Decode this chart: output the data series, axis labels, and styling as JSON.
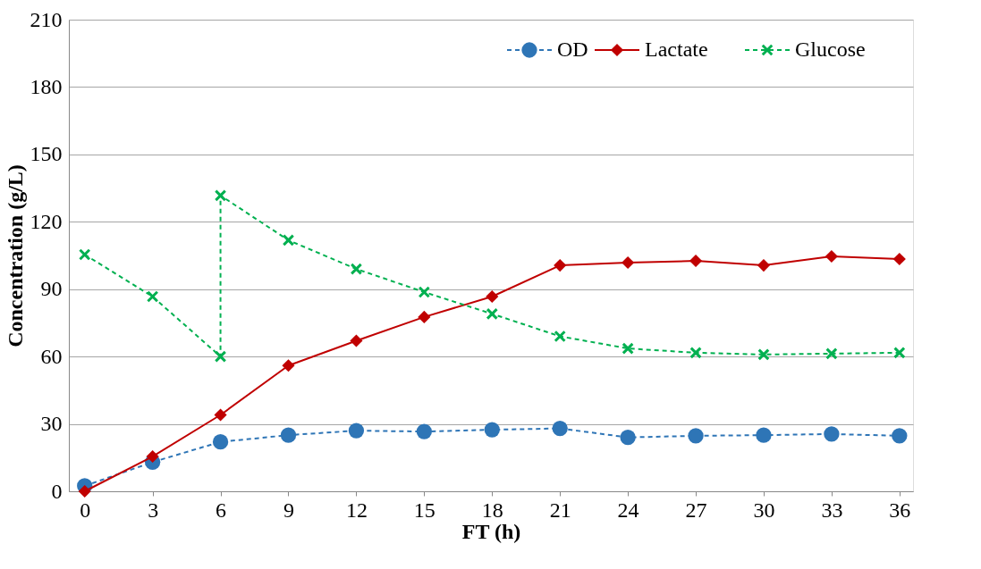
{
  "chart_data": {
    "type": "line",
    "xlabel": "FT (h)",
    "ylabel": "Concentration (g/L)",
    "x": [
      0,
      3,
      6,
      9,
      12,
      15,
      18,
      21,
      24,
      27,
      30,
      33,
      36
    ],
    "xlim": [
      -0.7,
      36.6
    ],
    "xticks": [
      0,
      3,
      6,
      9,
      12,
      15,
      18,
      21,
      24,
      27,
      30,
      33,
      36
    ],
    "ylim": [
      0,
      210
    ],
    "yticks": [
      0,
      30,
      60,
      90,
      120,
      150,
      180,
      210
    ],
    "grid": "y",
    "legend": "top right",
    "series": [
      {
        "name": "OD",
        "color": "#2e75b6",
        "marker": "circle",
        "line_style": "dashed",
        "values": [
          2.4,
          13,
          22,
          25,
          27,
          26.6,
          27.4,
          28,
          24,
          24.7,
          25,
          25.5,
          24.7
        ]
      },
      {
        "name": "Lactate",
        "color": "#c00000",
        "marker": "diamond",
        "line_style": "solid",
        "values": [
          0,
          15.5,
          34,
          56,
          67,
          77.6,
          86.7,
          100.6,
          101.8,
          102.6,
          100.6,
          104.6,
          103.4
        ]
      },
      {
        "name": "Glucose",
        "color": "#00b050",
        "marker": "cross",
        "line_style": "dashed",
        "x": [
          0,
          3,
          6,
          6,
          9,
          12,
          15,
          18,
          21,
          24,
          27,
          30,
          33,
          36
        ],
        "values": [
          105.4,
          86.7,
          60,
          131.7,
          111.8,
          99,
          88.7,
          79,
          69,
          63.6,
          61.7,
          60.9,
          61.3,
          61.7
        ]
      }
    ]
  }
}
